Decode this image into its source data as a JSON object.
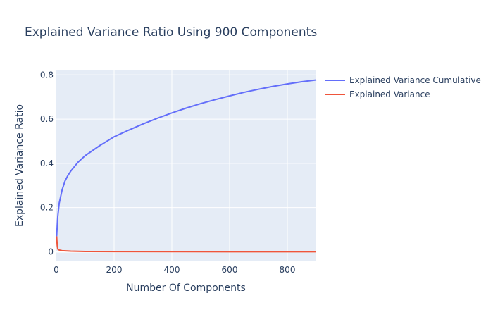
{
  "chart_data": {
    "type": "line",
    "title": "Explained Variance Ratio Using 900 Components",
    "xlabel": "Number Of Components",
    "ylabel": "Explained Variance Ratio",
    "xlim": [
      0,
      900
    ],
    "ylim": [
      -0.04,
      0.82
    ],
    "x_ticks": [
      {
        "value": 0,
        "label": "0"
      },
      {
        "value": 200,
        "label": "200"
      },
      {
        "value": 400,
        "label": "400"
      },
      {
        "value": 600,
        "label": "600"
      },
      {
        "value": 800,
        "label": "800"
      }
    ],
    "y_ticks": [
      {
        "value": 0,
        "label": "0"
      },
      {
        "value": 0.2,
        "label": "0.2"
      },
      {
        "value": 0.4,
        "label": "0.4"
      },
      {
        "value": 0.6,
        "label": "0.6"
      },
      {
        "value": 0.8,
        "label": "0.8"
      }
    ],
    "grid": true,
    "legend_position": "right",
    "colors": {
      "plot_background": "#e5ecf6",
      "grid": "#ffffff"
    },
    "series": [
      {
        "name": "Explained Variance Cumulative",
        "color": "#636efa",
        "x": [
          1,
          5,
          10,
          20,
          30,
          40,
          50,
          75,
          100,
          150,
          200,
          250,
          300,
          350,
          400,
          450,
          500,
          550,
          600,
          650,
          700,
          750,
          800,
          850,
          900
        ],
        "y": [
          0.07,
          0.16,
          0.22,
          0.28,
          0.32,
          0.345,
          0.365,
          0.405,
          0.435,
          0.48,
          0.52,
          0.55,
          0.578,
          0.604,
          0.628,
          0.65,
          0.67,
          0.688,
          0.705,
          0.721,
          0.735,
          0.748,
          0.759,
          0.769,
          0.777
        ]
      },
      {
        "name": "Explained Variance",
        "color": "#ef553b",
        "x": [
          1,
          3,
          5,
          10,
          20,
          50,
          100,
          200,
          400,
          600,
          800,
          900
        ],
        "y": [
          0.07,
          0.03,
          0.012,
          0.008,
          0.005,
          0.003,
          0.0015,
          0.001,
          0.0006,
          0.0004,
          0.0003,
          0.0002
        ]
      }
    ]
  }
}
